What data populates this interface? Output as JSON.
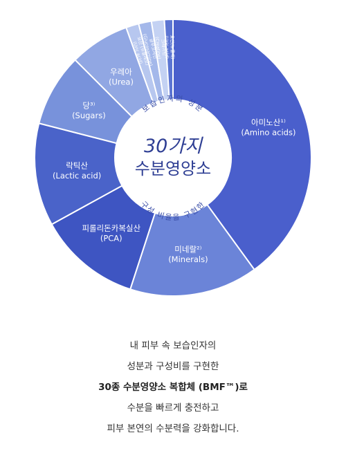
{
  "chart_data": {
    "type": "donut",
    "center": {
      "arc_top": "보습인자의 성분",
      "main_line1": "30가지",
      "main_line2": "수분영양소",
      "arc_bottom": "구성 비율을 구현한"
    },
    "slices": [
      {
        "label": "아미노산¹⁾",
        "sublabel": "(Amino acids)",
        "value": 40,
        "color": "#4a5fcc"
      },
      {
        "label": "미네랄²⁾",
        "sublabel": "(Minerals)",
        "value": 15,
        "color": "#6b84d8"
      },
      {
        "label": "피롤리돈카복실산",
        "sublabel": "(PCA)",
        "value": 12,
        "color": "#3e55c2"
      },
      {
        "label": "락틱산",
        "sublabel": "(Lactic acid)",
        "value": 12,
        "color": "#4a63c9"
      },
      {
        "label": "당³⁾",
        "sublabel": "(Sugars)",
        "value": 8.5,
        "color": "#7892db"
      },
      {
        "label": "우레아",
        "sublabel": "(Urea)",
        "value": 7,
        "color": "#91a7e3"
      },
      {
        "label": "요산 (뉴클레오)",
        "sublabel": "(Uric acid)",
        "value": 1.5,
        "color": "#b7c7ef"
      },
      {
        "label": "글루코사민",
        "sublabel": "(Glucosamine)",
        "value": 1.5,
        "color": "#a4b8ea"
      },
      {
        "label": "크레아틴",
        "sublabel": "(Creatine)",
        "value": 1.5,
        "color": "#c4d2f3"
      },
      {
        "label": "요산(뉴클레)",
        "sublabel": "(Uric acid)",
        "value": 1,
        "color": "#5b74d2"
      }
    ]
  },
  "description": {
    "line1": "내 피부 속 보습인자의",
    "line2": "성분과 구성비를 구현한",
    "line3": "30종 수분영양소 복합체 (BMF™)로",
    "line4": "수분을 빠르게 충전하고",
    "line5": "피부 본연의 수분력을 강화합니다."
  }
}
